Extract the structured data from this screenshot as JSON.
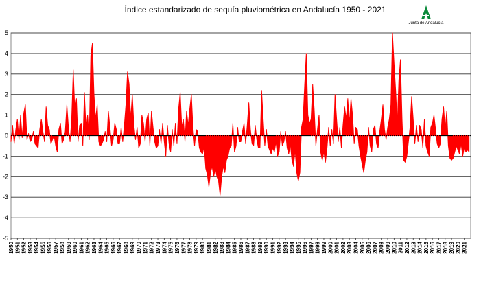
{
  "chart_data": {
    "type": "area",
    "title": "Índice estandarizado de sequía pluviométrica en Andalucía 1950 - 2021",
    "logo_text": "Junta de Andalucía",
    "color": "#ff0000",
    "grid": true,
    "xlim": [
      1950,
      2022
    ],
    "ylim": [
      -5,
      5
    ],
    "yticks": [
      -5,
      -4,
      -3,
      -2,
      -1,
      0,
      1,
      2,
      3,
      4,
      5
    ],
    "xticks": [
      1950,
      1951,
      1952,
      1953,
      1954,
      1955,
      1956,
      1957,
      1958,
      1959,
      1960,
      1961,
      1962,
      1963,
      1964,
      1965,
      1966,
      1967,
      1968,
      1969,
      1970,
      1971,
      1972,
      1973,
      1974,
      1975,
      1976,
      1977,
      1978,
      1979,
      1980,
      1981,
      1982,
      1983,
      1984,
      1985,
      1986,
      1987,
      1988,
      1989,
      1990,
      1991,
      1992,
      1993,
      1994,
      1995,
      1996,
      1997,
      1998,
      1999,
      2000,
      2001,
      2002,
      2003,
      2004,
      2005,
      2006,
      2007,
      2008,
      2009,
      2010,
      2011,
      2012,
      2013,
      2014,
      2015,
      2016,
      2017,
      2018,
      2019,
      2020,
      2021
    ],
    "x": [
      1950,
      1950.25,
      1950.5,
      1950.75,
      1951,
      1951.25,
      1951.5,
      1951.75,
      1952,
      1952.25,
      1952.5,
      1952.75,
      1953,
      1953.25,
      1953.5,
      1953.75,
      1954,
      1954.25,
      1954.5,
      1954.75,
      1955,
      1955.25,
      1955.5,
      1955.75,
      1956,
      1956.25,
      1956.5,
      1956.75,
      1957,
      1957.25,
      1957.5,
      1957.75,
      1958,
      1958.25,
      1958.5,
      1958.75,
      1959,
      1959.25,
      1959.5,
      1959.75,
      1960,
      1960.25,
      1960.5,
      1960.75,
      1961,
      1961.25,
      1961.5,
      1961.75,
      1962,
      1962.25,
      1962.5,
      1962.75,
      1963,
      1963.25,
      1963.5,
      1963.75,
      1964,
      1964.25,
      1964.5,
      1964.75,
      1965,
      1965.25,
      1965.5,
      1965.75,
      1966,
      1966.25,
      1966.5,
      1966.75,
      1967,
      1967.25,
      1967.5,
      1967.75,
      1968,
      1968.25,
      1968.5,
      1968.75,
      1969,
      1969.25,
      1969.5,
      1969.75,
      1970,
      1970.25,
      1970.5,
      1970.75,
      1971,
      1971.25,
      1971.5,
      1971.75,
      1972,
      1972.25,
      1972.5,
      1972.75,
      1973,
      1973.25,
      1973.5,
      1973.75,
      1974,
      1974.25,
      1974.5,
      1974.75,
      1975,
      1975.25,
      1975.5,
      1975.75,
      1976,
      1976.25,
      1976.5,
      1976.75,
      1977,
      1977.25,
      1977.5,
      1977.75,
      1978,
      1978.25,
      1978.5,
      1978.75,
      1979,
      1979.25,
      1979.5,
      1979.75,
      1980,
      1980.25,
      1980.5,
      1980.75,
      1981,
      1981.25,
      1981.5,
      1981.75,
      1982,
      1982.25,
      1982.5,
      1982.75,
      1983,
      1983.25,
      1983.5,
      1983.75,
      1984,
      1984.25,
      1984.5,
      1984.75,
      1985,
      1985.25,
      1985.5,
      1985.75,
      1986,
      1986.25,
      1986.5,
      1986.75,
      1987,
      1987.25,
      1987.5,
      1987.75,
      1988,
      1988.25,
      1988.5,
      1988.75,
      1989,
      1989.25,
      1989.5,
      1989.75,
      1990,
      1990.25,
      1990.5,
      1990.75,
      1991,
      1991.25,
      1991.5,
      1991.75,
      1992,
      1992.25,
      1992.5,
      1992.75,
      1993,
      1993.25,
      1993.5,
      1993.75,
      1994,
      1994.25,
      1994.5,
      1994.75,
      1995,
      1995.25,
      1995.5,
      1995.75,
      1996,
      1996.25,
      1996.5,
      1996.75,
      1997,
      1997.25,
      1997.5,
      1997.75,
      1998,
      1998.25,
      1998.5,
      1998.75,
      1999,
      1999.25,
      1999.5,
      1999.75,
      2000,
      2000.25,
      2000.5,
      2000.75,
      2001,
      2001.25,
      2001.5,
      2001.75,
      2002,
      2002.25,
      2002.5,
      2002.75,
      2003,
      2003.25,
      2003.5,
      2003.75,
      2004,
      2004.25,
      2004.5,
      2004.75,
      2005,
      2005.25,
      2005.5,
      2005.75,
      2006,
      2006.25,
      2006.5,
      2006.75,
      2007,
      2007.25,
      2007.5,
      2007.75,
      2008,
      2008.25,
      2008.5,
      2008.75,
      2009,
      2009.25,
      2009.5,
      2009.75,
      2010,
      2010.25,
      2010.5,
      2010.75,
      2011,
      2011.25,
      2011.5,
      2011.75,
      2012,
      2012.25,
      2012.5,
      2012.75,
      2013,
      2013.25,
      2013.5,
      2013.75,
      2014,
      2014.25,
      2014.5,
      2014.75,
      2015,
      2015.25,
      2015.5,
      2015.75,
      2016,
      2016.25,
      2016.5,
      2016.75,
      2017,
      2017.25,
      2017.5,
      2017.75,
      2018,
      2018.25,
      2018.5,
      2018.75,
      2019,
      2019.25,
      2019.5,
      2019.75,
      2020,
      2020.25,
      2020.5,
      2020.75,
      2021,
      2021.25,
      2021.5,
      2021.75
    ],
    "values": [
      -0.3,
      0.5,
      -0.4,
      0.3,
      0.8,
      -0.2,
      1.0,
      -0.1,
      1.1,
      1.5,
      -0.2,
      0.1,
      -0.3,
      -0.2,
      0.2,
      -0.4,
      -0.5,
      -0.6,
      0.3,
      0.8,
      0.2,
      -0.3,
      1.4,
      0.5,
      0.3,
      -0.4,
      -0.2,
      0.0,
      -0.5,
      -0.8,
      0.3,
      0.6,
      -0.4,
      -0.2,
      0.2,
      1.5,
      0.4,
      -0.3,
      0.8,
      3.2,
      1.2,
      1.8,
      -0.3,
      0.5,
      0.6,
      -0.5,
      2.1,
      0.3,
      1.0,
      -0.2,
      3.9,
      4.5,
      2.0,
      0.8,
      1.5,
      -0.3,
      -0.5,
      -0.4,
      -0.2,
      0.2,
      -0.3,
      1.2,
      0.4,
      -0.5,
      -0.2,
      0.6,
      0.3,
      -0.4,
      -0.4,
      0.4,
      -0.3,
      0.5,
      1.5,
      3.1,
      2.5,
      0.8,
      2.0,
      0.5,
      -0.2,
      0.4,
      -0.6,
      -0.4,
      1.0,
      0.6,
      -0.3,
      0.8,
      1.1,
      -0.5,
      1.2,
      0.4,
      -0.3,
      -0.6,
      -0.5,
      0.3,
      -0.4,
      0.6,
      -0.3,
      -1.0,
      0.5,
      -0.4,
      -0.8,
      0.3,
      -0.5,
      0.6,
      -0.4,
      1.3,
      2.1,
      0.4,
      0.8,
      -0.3,
      1.2,
      0.5,
      1.3,
      2.0,
      0.4,
      -0.5,
      0.3,
      0.2,
      -0.6,
      -0.8,
      -0.9,
      -0.5,
      -1.6,
      -1.9,
      -2.5,
      -1.8,
      -1.5,
      -2.0,
      -1.6,
      -2.0,
      -2.2,
      -2.9,
      -2.0,
      -1.5,
      -1.8,
      -1.2,
      -1.0,
      -0.6,
      -0.5,
      0.6,
      -0.8,
      -0.5,
      0.4,
      -0.3,
      -0.3,
      0.2,
      0.6,
      -0.4,
      0.5,
      1.6,
      0.3,
      -0.4,
      -0.5,
      0.5,
      -0.2,
      -0.6,
      -0.6,
      2.2,
      0.8,
      -0.5,
      0.3,
      -0.5,
      -0.7,
      -0.9,
      -0.6,
      -0.8,
      -0.3,
      -1.0,
      -0.8,
      0.2,
      -0.5,
      -0.3,
      0.2,
      -0.6,
      -0.9,
      -0.4,
      -1.2,
      -1.5,
      -0.7,
      -1.8,
      -2.2,
      -1.8,
      0.4,
      0.8,
      2.5,
      4.0,
      1.0,
      0.6,
      0.8,
      2.5,
      1.2,
      -0.5,
      0.3,
      1.0,
      -0.8,
      -1.2,
      -0.8,
      -1.3,
      -0.6,
      0.4,
      -0.5,
      0.3,
      -0.4,
      2.0,
      0.8,
      -0.3,
      0.4,
      -0.6,
      0.5,
      1.4,
      0.8,
      1.8,
      0.6,
      1.8,
      1.0,
      -0.4,
      0.4,
      0.3,
      -0.5,
      -1.0,
      -1.4,
      -1.8,
      -1.2,
      -0.8,
      0.4,
      -0.5,
      -0.8,
      0.3,
      0.5,
      -0.4,
      -0.6,
      0.2,
      0.8,
      1.5,
      0.3,
      -0.2,
      0.4,
      0.8,
      1.5,
      5.0,
      3.5,
      2.2,
      0.5,
      2.7,
      3.7,
      0.8,
      -1.2,
      -1.3,
      -1.0,
      -0.3,
      0.4,
      1.9,
      0.8,
      -0.4,
      0.5,
      -0.3,
      0.5,
      0.3,
      -0.6,
      0.8,
      -0.5,
      -0.8,
      -1.0,
      0.4,
      0.6,
      1.0,
      0.3,
      -0.4,
      -0.6,
      -0.4,
      0.8,
      1.4,
      0.3,
      1.2,
      -0.5,
      -1.1,
      -1.2,
      -1.1,
      -0.8,
      -0.5,
      -0.7,
      -0.9,
      -0.4,
      -1.0,
      -0.6,
      -0.8,
      -0.7,
      -0.8
    ]
  }
}
